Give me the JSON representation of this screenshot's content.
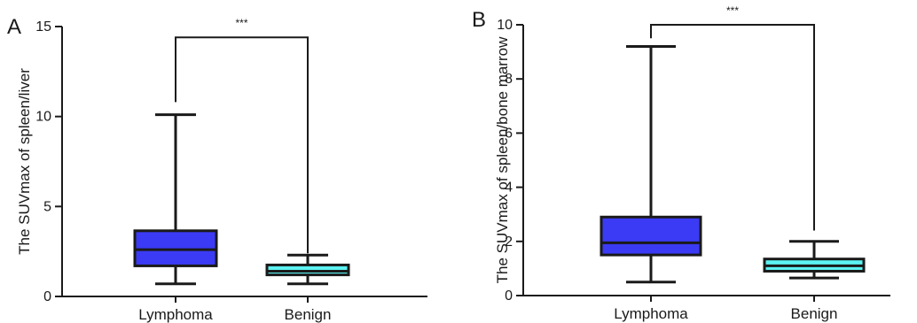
{
  "chart_data": [
    {
      "type": "box",
      "panel_label": "A",
      "ylabel": "The SUVmax of spleen/liver",
      "ylim": [
        0,
        15
      ],
      "yticks": [
        0,
        5,
        10,
        15
      ],
      "categories": [
        "Lymphoma",
        "Benign"
      ],
      "boxes": [
        {
          "category": "Lymphoma",
          "min": 0.7,
          "q1": 1.7,
          "median": 2.6,
          "q3": 3.65,
          "max": 10.1,
          "color": "#3b3bf5"
        },
        {
          "category": "Benign",
          "min": 0.7,
          "q1": 1.2,
          "median": 1.4,
          "q3": 1.75,
          "max": 2.3,
          "color": "#5cf2f2"
        }
      ],
      "significance": {
        "label": "***",
        "from": "Lymphoma",
        "to": "Benign",
        "y": 14.4,
        "left_drop": 10.8,
        "right_drop": 2.4
      }
    },
    {
      "type": "box",
      "panel_label": "B",
      "ylabel": "The SUVmax of spleen/bone marrow",
      "ylim": [
        0,
        10
      ],
      "yticks": [
        0,
        2,
        4,
        6,
        8,
        10
      ],
      "categories": [
        "Lymphoma",
        "Benign"
      ],
      "boxes": [
        {
          "category": "Lymphoma",
          "min": 0.5,
          "q1": 1.5,
          "median": 1.95,
          "q3": 2.9,
          "max": 9.2,
          "color": "#3b3bf5"
        },
        {
          "category": "Benign",
          "min": 0.65,
          "q1": 0.9,
          "median": 1.1,
          "q3": 1.35,
          "max": 2.0,
          "color": "#5cf2f2"
        }
      ],
      "significance": {
        "label": "***",
        "from": "Lymphoma",
        "to": "Benign",
        "y": 10.0,
        "left_drop": 9.5,
        "right_drop": 2.4
      }
    }
  ]
}
